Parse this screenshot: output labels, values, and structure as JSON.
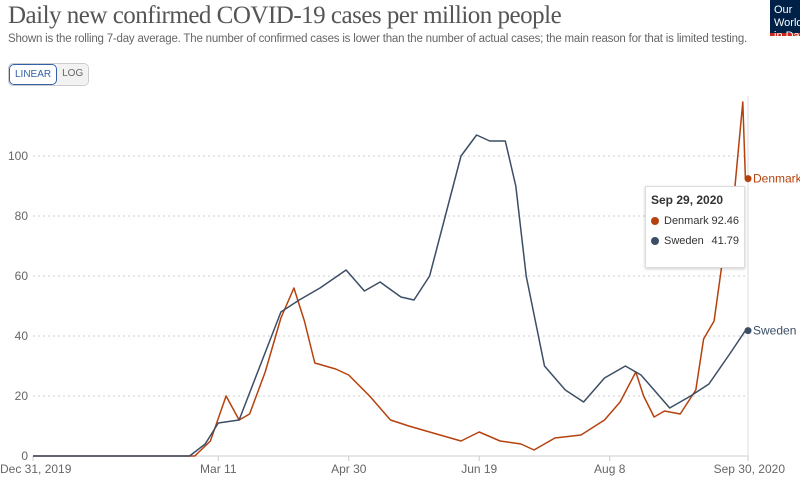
{
  "header": {
    "title": "Daily new confirmed COVID-19 cases per million people",
    "subtitle": "Shown is the rolling 7-day average. The number of confirmed cases is lower than the number of actual cases; the main reason for that is limited testing.",
    "logo": "Our World in Data"
  },
  "scale_toggle": {
    "linear": "LINEAR",
    "log": "LOG",
    "selected": "LINEAR"
  },
  "tooltip": {
    "date": "Sep 29, 2020",
    "rows": [
      {
        "name": "Denmark",
        "value": "92.46"
      },
      {
        "name": "Sweden",
        "value": "41.79"
      }
    ]
  },
  "chart_data": {
    "type": "line",
    "title": "Daily new confirmed COVID-19 cases per million people",
    "xlim": [
      "2019-12-31",
      "2020-09-30"
    ],
    "ylim": [
      0,
      120
    ],
    "grid": "horizontal dotted",
    "x_ticks": [
      {
        "date": "2019-12-31",
        "label": "Dec 31, 2019"
      },
      {
        "date": "2020-03-11",
        "label": "Mar 11"
      },
      {
        "date": "2020-04-30",
        "label": "Apr 30"
      },
      {
        "date": "2020-06-19",
        "label": "Jun 19"
      },
      {
        "date": "2020-08-08",
        "label": "Aug 8"
      },
      {
        "date": "2020-09-30",
        "label": "Sep 30, 2020"
      }
    ],
    "y_ticks": [
      0,
      20,
      40,
      60,
      80,
      100
    ],
    "series": [
      {
        "name": "Denmark",
        "color": "#b5420e",
        "points": [
          [
            "2019-12-31",
            0
          ],
          [
            "2020-03-02",
            0
          ],
          [
            "2020-03-08",
            5
          ],
          [
            "2020-03-14",
            20
          ],
          [
            "2020-03-19",
            12
          ],
          [
            "2020-03-23",
            14
          ],
          [
            "2020-03-29",
            28
          ],
          [
            "2020-04-04",
            46
          ],
          [
            "2020-04-09",
            56
          ],
          [
            "2020-04-13",
            45
          ],
          [
            "2020-04-17",
            31
          ],
          [
            "2020-04-25",
            29
          ],
          [
            "2020-04-30",
            27
          ],
          [
            "2020-05-08",
            20
          ],
          [
            "2020-05-16",
            12
          ],
          [
            "2020-05-23",
            10
          ],
          [
            "2020-05-31",
            8
          ],
          [
            "2020-06-12",
            5
          ],
          [
            "2020-06-19",
            8
          ],
          [
            "2020-06-27",
            5
          ],
          [
            "2020-07-05",
            4
          ],
          [
            "2020-07-10",
            2
          ],
          [
            "2020-07-18",
            6
          ],
          [
            "2020-07-28",
            7
          ],
          [
            "2020-08-06",
            12
          ],
          [
            "2020-08-12",
            18
          ],
          [
            "2020-08-18",
            28
          ],
          [
            "2020-08-21",
            20
          ],
          [
            "2020-08-25",
            13
          ],
          [
            "2020-08-29",
            15
          ],
          [
            "2020-09-04",
            14
          ],
          [
            "2020-09-10",
            22
          ],
          [
            "2020-09-13",
            39
          ],
          [
            "2020-09-17",
            45
          ],
          [
            "2020-09-21",
            70
          ],
          [
            "2020-09-25",
            90
          ],
          [
            "2020-09-28",
            118
          ],
          [
            "2020-09-29",
            92.46
          ]
        ]
      },
      {
        "name": "Sweden",
        "color": "#3c4e66",
        "points": [
          [
            "2019-12-31",
            0
          ],
          [
            "2020-02-29",
            0
          ],
          [
            "2020-03-06",
            4
          ],
          [
            "2020-03-11",
            11
          ],
          [
            "2020-03-19",
            12
          ],
          [
            "2020-03-27",
            30
          ],
          [
            "2020-04-04",
            48
          ],
          [
            "2020-04-11",
            52
          ],
          [
            "2020-04-19",
            56
          ],
          [
            "2020-04-29",
            62
          ],
          [
            "2020-05-06",
            55
          ],
          [
            "2020-05-12",
            58
          ],
          [
            "2020-05-20",
            53
          ],
          [
            "2020-05-25",
            52
          ],
          [
            "2020-05-31",
            60
          ],
          [
            "2020-06-06",
            80
          ],
          [
            "2020-06-12",
            100
          ],
          [
            "2020-06-18",
            107
          ],
          [
            "2020-06-23",
            105
          ],
          [
            "2020-06-29",
            105
          ],
          [
            "2020-07-03",
            90
          ],
          [
            "2020-07-07",
            60
          ],
          [
            "2020-07-14",
            30
          ],
          [
            "2020-07-22",
            22
          ],
          [
            "2020-07-29",
            18
          ],
          [
            "2020-08-06",
            26
          ],
          [
            "2020-08-14",
            30
          ],
          [
            "2020-08-20",
            27
          ],
          [
            "2020-08-25",
            22
          ],
          [
            "2020-08-31",
            16
          ],
          [
            "2020-09-08",
            20
          ],
          [
            "2020-09-15",
            24
          ],
          [
            "2020-09-23",
            34
          ],
          [
            "2020-09-29",
            41.79
          ]
        ]
      }
    ]
  }
}
